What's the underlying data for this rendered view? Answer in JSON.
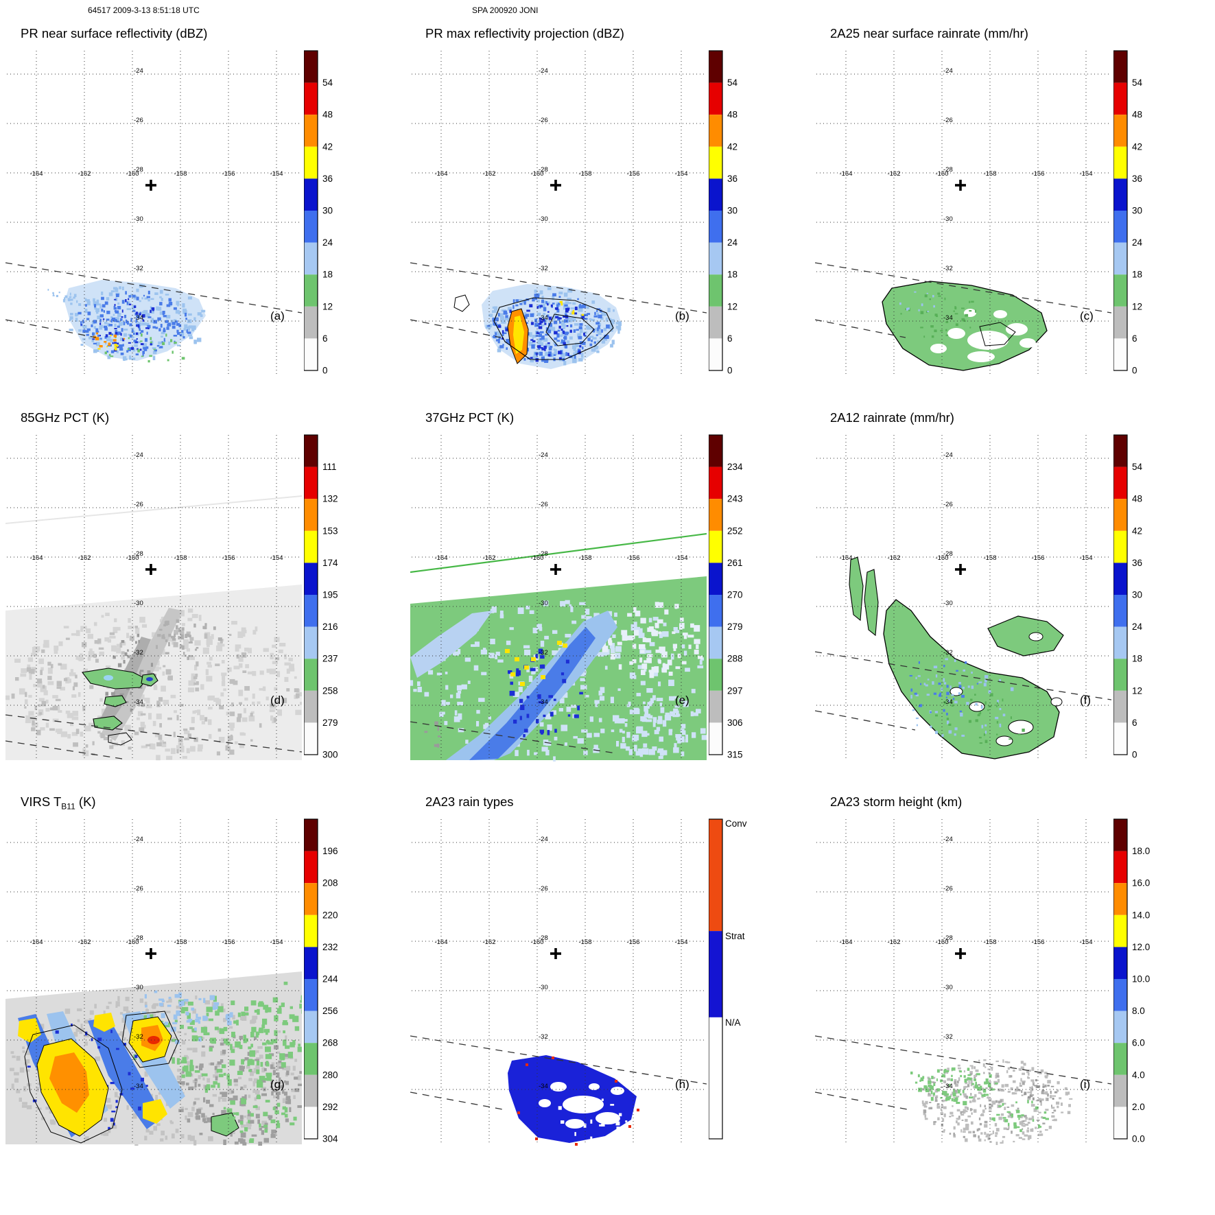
{
  "header": {
    "left": "64517 2009-3-13 8:51:18 UTC",
    "center": "SPA 200920 JONI"
  },
  "axes": {
    "lon_labels": [
      "-164",
      "-162",
      "-160",
      "-158",
      "-156",
      "-154"
    ],
    "lat_labels": [
      "-24",
      "-26",
      "-28",
      "-30",
      "-32",
      "-34"
    ],
    "center_marker_lonlat": [
      -159.3,
      -28.5
    ]
  },
  "palette": {
    "scale_top_to_bottom": [
      "#5f0000",
      "#e60000",
      "#ff8c00",
      "#ffff00",
      "#0a14cd",
      "#3f6fee",
      "#a6c8f2",
      "#6ec46e",
      "#bdbdbd",
      "#fcfcfc"
    ],
    "raintype": {
      "conv": "#ee4b11",
      "strat": "#1414d2",
      "na": "#ffffff"
    },
    "map_green": "#7dca7d",
    "map_blue": "#4a7ce8",
    "map_pale_blue": "#cfe2f7",
    "map_navy": "#1c2fd4",
    "map_yellow": "#ffe400",
    "map_orange": "#ff9000",
    "map_red": "#e82800"
  },
  "panels": [
    {
      "id": "a",
      "letter": "(a)",
      "title": "PR near surface reflectivity (dBZ)",
      "colorbar": {
        "type": "scale",
        "ticks": [
          "54",
          "48",
          "42",
          "36",
          "30",
          "24",
          "18",
          "12",
          "6",
          "0"
        ]
      }
    },
    {
      "id": "b",
      "letter": "(b)",
      "title": "PR max reflectivity projection (dBZ)",
      "colorbar": {
        "type": "scale",
        "ticks": [
          "54",
          "48",
          "42",
          "36",
          "30",
          "24",
          "18",
          "12",
          "6",
          "0"
        ]
      }
    },
    {
      "id": "c",
      "letter": "(c)",
      "title": "2A25 near surface rainrate (mm/hr)",
      "colorbar": {
        "type": "scale",
        "ticks": [
          "54",
          "48",
          "42",
          "36",
          "30",
          "24",
          "18",
          "12",
          "6",
          "0"
        ]
      }
    },
    {
      "id": "d",
      "letter": "(d)",
      "title": "85GHz PCT (K)",
      "colorbar": {
        "type": "scale",
        "ticks": [
          "111",
          "132",
          "153",
          "174",
          "195",
          "216",
          "237",
          "258",
          "279",
          "300"
        ]
      }
    },
    {
      "id": "e",
      "letter": "(e)",
      "title": "37GHz PCT (K)",
      "colorbar": {
        "type": "scale",
        "ticks": [
          "234",
          "243",
          "252",
          "261",
          "270",
          "279",
          "288",
          "297",
          "306",
          "315"
        ]
      }
    },
    {
      "id": "f",
      "letter": "(f)",
      "title": "2A12 rainrate (mm/hr)",
      "colorbar": {
        "type": "scale",
        "ticks": [
          "54",
          "48",
          "42",
          "36",
          "30",
          "24",
          "18",
          "12",
          "6",
          "0"
        ]
      }
    },
    {
      "id": "g",
      "letter": "(g)",
      "title_pre": "VIRS T",
      "title_sub": "B11",
      "title_post": " (K)",
      "colorbar": {
        "type": "scale",
        "ticks": [
          "196",
          "208",
          "220",
          "232",
          "244",
          "256",
          "268",
          "280",
          "292",
          "304"
        ]
      }
    },
    {
      "id": "h",
      "letter": "(h)",
      "title": "2A23 rain types",
      "colorbar": {
        "type": "raintype",
        "labels": [
          "Conv",
          "Strat",
          "N/A"
        ]
      }
    },
    {
      "id": "i",
      "letter": "(i)",
      "title": "2A23 storm height (km)",
      "colorbar": {
        "type": "scale",
        "ticks": [
          "18.0",
          "16.0",
          "14.0",
          "12.0",
          "10.0",
          "8.0",
          "6.0",
          "4.0",
          "2.0",
          "0.0"
        ]
      }
    }
  ],
  "chart_data": [
    {
      "type": "heatmap",
      "panel": "a",
      "title": "PR near surface reflectivity (dBZ)",
      "units": "dBZ",
      "value_ticks": [
        54,
        48,
        42,
        36,
        30,
        24,
        18,
        12,
        6,
        0
      ],
      "lon_ticks": [
        -164,
        -162,
        -160,
        -158,
        -156,
        -154
      ],
      "lat_ticks": [
        -24,
        -26,
        -28,
        -30,
        -32,
        -34
      ],
      "extent": {
        "lon": [
          -165.3,
          -152.9
        ],
        "lat": [
          -36.3,
          -23.1
        ]
      },
      "center_marker_lonlat": [
        -159.3,
        -28.5
      ],
      "legend_position": "right",
      "grid": "dotted",
      "features": "Scattered rain band near 33-35S, 157-163W; mostly 18-36 dBZ echoes with isolated 36-48 dBZ cells; PR swath edges drawn as dashed lines."
    },
    {
      "type": "heatmap",
      "panel": "b",
      "title": "PR max reflectivity projection (dBZ)",
      "units": "dBZ",
      "value_ticks": [
        54,
        48,
        42,
        36,
        30,
        24,
        18,
        12,
        6,
        0
      ],
      "lon_ticks": [
        -164,
        -162,
        -160,
        -158,
        -156,
        -154
      ],
      "lat_ticks": [
        -24,
        -26,
        -28,
        -30,
        -32,
        -34
      ],
      "extent": {
        "lon": [
          -165.3,
          -152.9
        ],
        "lat": [
          -36.3,
          -23.1
        ]
      },
      "center_marker_lonlat": [
        -159.3,
        -28.5
      ],
      "legend_position": "right",
      "grid": "dotted",
      "features": "Same band with higher max reflectivity; embedded 36-48 dBZ convective cores (orange/yellow streak) and black contours outlining echo regions."
    },
    {
      "type": "heatmap",
      "panel": "c",
      "title": "2A25 near surface rainrate (mm/hr)",
      "units": "mm/hr",
      "value_ticks": [
        54,
        48,
        42,
        36,
        30,
        24,
        18,
        12,
        6,
        0
      ],
      "lon_ticks": [
        -164,
        -162,
        -160,
        -158,
        -156,
        -154
      ],
      "lat_ticks": [
        -24,
        -26,
        -28,
        -30,
        -32,
        -34
      ],
      "extent": {
        "lon": [
          -165.3,
          -152.9
        ],
        "lat": [
          -36.3,
          -23.1
        ]
      },
      "center_marker_lonlat": [
        -159.3,
        -28.5
      ],
      "legend_position": "right",
      "grid": "dotted",
      "features": "Near-surface rain rates mostly below 12 mm/hr (green) across the band, lacy pattern with rain-free holes, black contour outline."
    },
    {
      "type": "heatmap",
      "panel": "d",
      "title": "85GHz PCT (K)",
      "units": "K",
      "value_ticks": [
        111,
        132,
        153,
        174,
        195,
        216,
        237,
        258,
        279,
        300
      ],
      "lon_ticks": [
        -164,
        -162,
        -160,
        -158,
        -156,
        -154
      ],
      "lat_ticks": [
        -24,
        -26,
        -28,
        -30,
        -32,
        -34
      ],
      "extent": {
        "lon": [
          -165.3,
          -152.9
        ],
        "lat": [
          -36.3,
          -23.1
        ]
      },
      "center_marker_lonlat": [
        -159.3,
        -28.5
      ],
      "legend_position": "right",
      "grid": "dotted",
      "features": "TMI swath covering lower half; background 258-300 K (gray/white) with small 216-258 K depressions (green contoured blobs) along the rain band."
    },
    {
      "type": "heatmap",
      "panel": "e",
      "title": "37GHz PCT (K)",
      "units": "K",
      "value_ticks": [
        234,
        243,
        252,
        261,
        270,
        279,
        288,
        297,
        306,
        315
      ],
      "lon_ticks": [
        -164,
        -162,
        -160,
        -158,
        -156,
        -154
      ],
      "lat_ticks": [
        -24,
        -26,
        -28,
        -30,
        -32,
        -34
      ],
      "extent": {
        "lon": [
          -165.3,
          -152.9
        ],
        "lat": [
          -36.3,
          -23.1
        ]
      },
      "center_marker_lonlat": [
        -159.3,
        -28.5
      ],
      "legend_position": "right",
      "grid": "dotted",
      "features": "Background 279-297 K (green) with SW-NE oriented 252-279 K band (blue), few 261 K minima (yellow pixels); solid green line marks orbit track."
    },
    {
      "type": "heatmap",
      "panel": "f",
      "title": "2A12 rainrate (mm/hr)",
      "units": "mm/hr",
      "value_ticks": [
        54,
        48,
        42,
        36,
        30,
        24,
        18,
        12,
        6,
        0
      ],
      "lon_ticks": [
        -164,
        -162,
        -160,
        -158,
        -156,
        -154
      ],
      "lat_ticks": [
        -24,
        -26,
        -28,
        -30,
        -32,
        -34
      ],
      "extent": {
        "lon": [
          -165.3,
          -152.9
        ],
        "lat": [
          -36.3,
          -23.1
        ]
      },
      "center_marker_lonlat": [
        -159.3,
        -28.5
      ],
      "legend_position": "right",
      "grid": "dotted",
      "features": "Broad TMI rain area (mostly <12 mm/hr, green with black outline) stretching SW-NE with embedded 12-24 mm/hr blue speckles and rain-free holes."
    },
    {
      "type": "heatmap",
      "panel": "g",
      "title": "VIRS TB11 (K)",
      "units": "K",
      "value_ticks": [
        196,
        208,
        220,
        232,
        244,
        256,
        268,
        280,
        292,
        304
      ],
      "lon_ticks": [
        -164,
        -162,
        -160,
        -158,
        -156,
        -154
      ],
      "lat_ticks": [
        -24,
        -26,
        -28,
        -30,
        -32,
        -34
      ],
      "extent": {
        "lon": [
          -165.3,
          -152.9
        ],
        "lat": [
          -36.3,
          -23.1
        ]
      },
      "center_marker_lonlat": [
        -159.3,
        -28.5
      ],
      "legend_position": "right",
      "grid": "dotted",
      "features": "VIRS swath in lower half: cold cloud tops 208-232 K (yellow/orange bands), minima near 196 K (red core), surrounded by 232-268 K blue/green and warm gray background."
    },
    {
      "type": "heatmap",
      "panel": "h",
      "title": "2A23 rain types",
      "units": "category",
      "categories": [
        "Conv",
        "Strat",
        "N/A"
      ],
      "category_colors": [
        "#ee4b11",
        "#1414d2",
        "#ffffff"
      ],
      "lon_ticks": [
        -164,
        -162,
        -160,
        -158,
        -156,
        -154
      ],
      "lat_ticks": [
        -24,
        -26,
        -28,
        -30,
        -32,
        -34
      ],
      "extent": {
        "lon": [
          -165.3,
          -152.9
        ],
        "lat": [
          -36.3,
          -23.1
        ]
      },
      "center_marker_lonlat": [
        -159.3,
        -28.5
      ],
      "legend_position": "right",
      "grid": "dotted",
      "features": "Rain-type classification: predominantly stratiform (blue) band near 33-35S with isolated convective (red) pixels along its edges."
    },
    {
      "type": "heatmap",
      "panel": "i",
      "title": "2A23 storm height (km)",
      "units": "km",
      "value_ticks": [
        18.0,
        16.0,
        14.0,
        12.0,
        10.0,
        8.0,
        6.0,
        4.0,
        2.0,
        0.0
      ],
      "lon_ticks": [
        -164,
        -162,
        -160,
        -158,
        -156,
        -154
      ],
      "lat_ticks": [
        -24,
        -26,
        -28,
        -30,
        -32,
        -34
      ],
      "extent": {
        "lon": [
          -165.3,
          -152.9
        ],
        "lat": [
          -36.3,
          -23.1
        ]
      },
      "center_marker_lonlat": [
        -159.3,
        -28.5
      ],
      "legend_position": "right",
      "grid": "dotted",
      "features": "Storm heights mostly 2-6 km (gray speckle) with patches of 4-6 km (green) in the band near 33-35S."
    }
  ]
}
